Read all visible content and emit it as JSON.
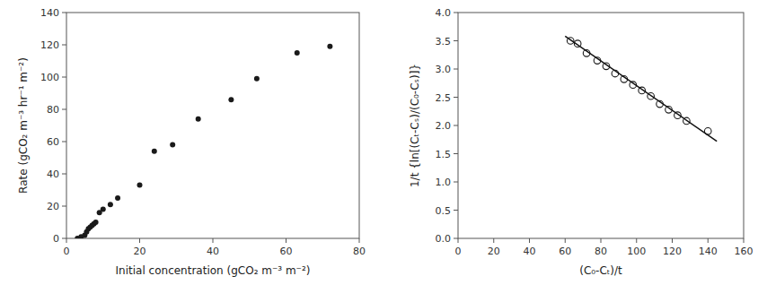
{
  "chart_data": [
    {
      "type": "scatter",
      "xlabel": "Initial concentration (gCO₂ m⁻³ m⁻²)",
      "ylabel": "Rate (gCO₂ m⁻³ hr⁻¹ m⁻²)",
      "xlim": [
        0,
        80
      ],
      "ylim": [
        0,
        140
      ],
      "xticks": [
        0,
        20,
        40,
        60,
        80
      ],
      "yticks": [
        0,
        20,
        40,
        60,
        80,
        100,
        120,
        140
      ],
      "grid": false,
      "series": [
        {
          "type": "scatter",
          "marker": "circle",
          "color": "#1a1a1a",
          "x": [
            3,
            4,
            5,
            5.5,
            6,
            6.5,
            7,
            7.5,
            8,
            9,
            10,
            12,
            14,
            20,
            24,
            29,
            36,
            45,
            52,
            63,
            72
          ],
          "values": [
            0,
            1,
            2,
            4,
            6,
            7,
            8,
            9,
            10,
            16,
            18,
            21,
            25,
            33,
            54,
            58,
            74,
            86,
            99,
            115,
            119
          ]
        }
      ]
    },
    {
      "type": "scatter",
      "xlabel": "(C₀-Cₜ)/t",
      "ylabel": "1/t {ln[(Cₜ-Cₛ)/(C₀-Cₛ)]}",
      "xlim": [
        0,
        160
      ],
      "ylim": [
        0,
        4
      ],
      "xticks": [
        0,
        20,
        40,
        60,
        80,
        100,
        120,
        140,
        160
      ],
      "yticks": [
        {
          "value": 0,
          "label": "0.0"
        },
        0.5,
        {
          "value": 1,
          "label": "1.0"
        },
        1.5,
        {
          "value": 2,
          "label": "2.0"
        },
        2.5,
        {
          "value": 3,
          "label": "3.0"
        },
        3.5,
        {
          "value": 4,
          "label": "4.0"
        }
      ],
      "grid": false,
      "series": [
        {
          "type": "scatter",
          "marker": "open-circle",
          "color": "#1a1a1a",
          "x": [
            63,
            67,
            72,
            78,
            83,
            88,
            93,
            98,
            103,
            108,
            113,
            118,
            123,
            128,
            140
          ],
          "values": [
            3.5,
            3.45,
            3.28,
            3.15,
            3.05,
            2.92,
            2.82,
            2.72,
            2.62,
            2.52,
            2.38,
            2.28,
            2.18,
            2.08,
            1.9
          ]
        },
        {
          "type": "line",
          "line_style": "solid",
          "color": "#111111",
          "x": [
            60,
            145
          ],
          "values": [
            3.58,
            1.72
          ]
        }
      ]
    }
  ]
}
